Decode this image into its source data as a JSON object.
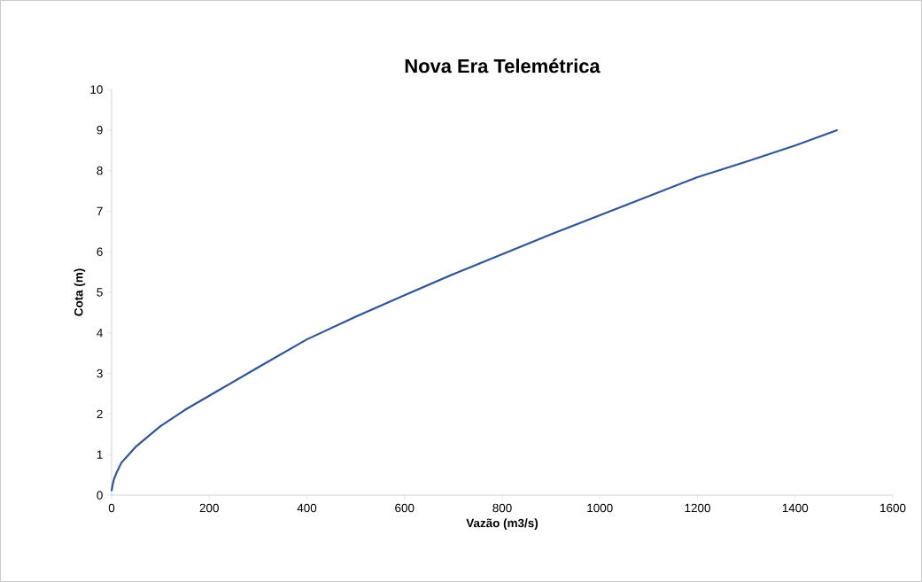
{
  "chart_data": {
    "type": "line",
    "title": "Nova Era Telemétrica",
    "xlabel": "Vazão (m3/s)",
    "ylabel": "Cota (m)",
    "x": [
      0,
      2,
      5,
      10,
      20,
      35,
      50,
      70,
      100,
      150,
      200,
      300,
      400,
      500,
      600,
      700,
      800,
      900,
      1000,
      1100,
      1200,
      1300,
      1400,
      1487
    ],
    "series": [
      {
        "color": "#2f5597",
        "values": [
          0.1,
          0.25,
          0.4,
          0.55,
          0.8,
          1.0,
          1.2,
          1.4,
          1.7,
          2.1,
          2.45,
          3.15,
          3.84,
          4.4,
          4.93,
          5.45,
          5.94,
          6.43,
          6.9,
          7.37,
          7.84,
          8.22,
          8.62,
          9.0
        ]
      }
    ],
    "xlim": [
      0,
      1600
    ],
    "ylim": [
      0,
      10
    ],
    "xticks": [
      0,
      200,
      400,
      600,
      800,
      1000,
      1200,
      1400,
      1600
    ],
    "yticks": [
      0,
      1,
      2,
      3,
      4,
      5,
      6,
      7,
      8,
      9,
      10
    ],
    "grid": false,
    "marker": "none",
    "line_style": "solid"
  }
}
